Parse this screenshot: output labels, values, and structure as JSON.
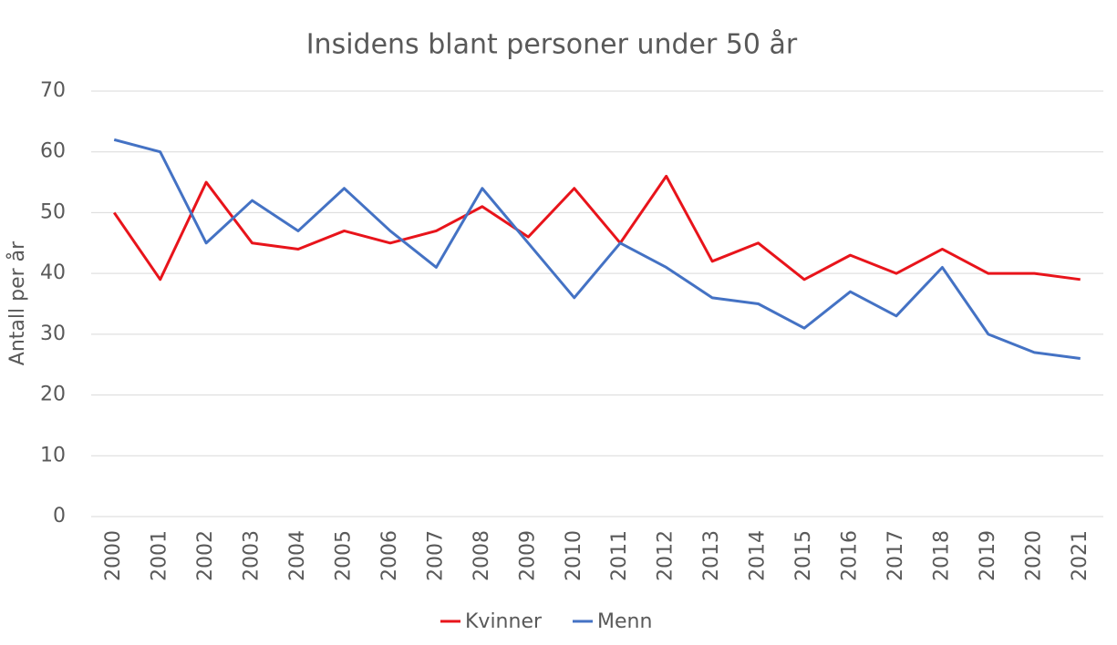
{
  "chart_data": {
    "type": "line",
    "title": "Insidens blant personer under 50 år",
    "y_label": "Antall per år",
    "categories": [
      "2000",
      "2001",
      "2002",
      "2003",
      "2004",
      "2005",
      "2006",
      "2007",
      "2008",
      "2009",
      "2010",
      "2011",
      "2012",
      "2013",
      "2014",
      "2015",
      "2016",
      "2017",
      "2018",
      "2019",
      "2020",
      "2021"
    ],
    "series": [
      {
        "name": "Kvinner",
        "color": "#e8141b",
        "values": [
          50,
          39,
          55,
          45,
          44,
          47,
          45,
          47,
          51,
          46,
          54,
          45,
          56,
          42,
          45,
          39,
          43,
          40,
          44,
          40,
          40,
          39
        ]
      },
      {
        "name": "Menn",
        "color": "#4472c4",
        "values": [
          62,
          60,
          45,
          52,
          47,
          54,
          47,
          41,
          54,
          45,
          36,
          45,
          41,
          36,
          35,
          31,
          37,
          33,
          41,
          30,
          27,
          26
        ]
      }
    ],
    "ylim": [
      0,
      70
    ],
    "yticks": [
      0,
      10,
      20,
      30,
      40,
      50,
      60,
      70
    ],
    "grid": true,
    "legend": "bottom"
  }
}
